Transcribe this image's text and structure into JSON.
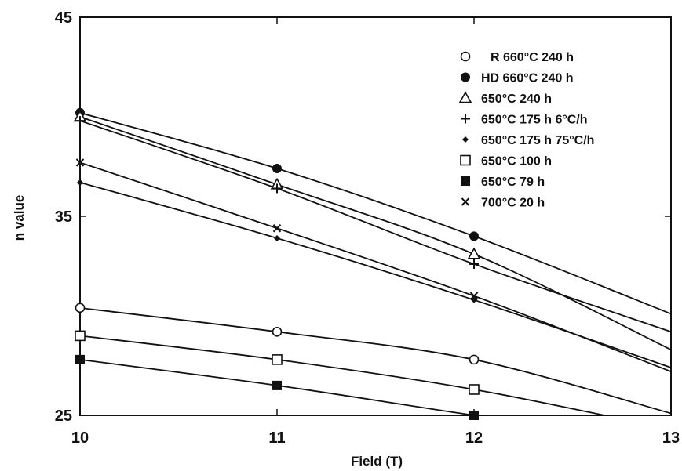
{
  "chart_data": {
    "type": "line",
    "title": "",
    "xlabel": "Field (T)",
    "ylabel": "n value",
    "xlim": [
      10,
      13
    ],
    "ylim": [
      25,
      45
    ],
    "x_ticks": [
      10,
      11,
      12,
      13
    ],
    "x_tick_labels": [
      "10",
      "11",
      "12",
      "13"
    ],
    "y_ticks": [
      25,
      35,
      45
    ],
    "y_tick_labels": [
      "25",
      "35",
      "45"
    ],
    "grid": false,
    "legend_position": "top-right",
    "series": [
      {
        "name": "R 660°C  240 h",
        "marker": "circle-open",
        "x": [
          10,
          11,
          12
        ],
        "y": [
          30.4,
          29.2,
          27.8
        ],
        "line_end": [
          13,
          25.1
        ]
      },
      {
        "name": "HD 660°C 240 h",
        "marker": "circle-filled",
        "x": [
          10,
          11,
          12
        ],
        "y": [
          40.2,
          37.4,
          34.0
        ],
        "line_end": [
          13,
          30.1
        ]
      },
      {
        "name": "650°C 240 h",
        "marker": "triangle-open",
        "x": [
          10,
          11,
          12
        ],
        "y": [
          40.0,
          36.6,
          33.1
        ],
        "line_end": [
          13,
          28.3
        ]
      },
      {
        "name": "650°C 175 h 6°C/h",
        "marker": "plus",
        "x": [
          10,
          11,
          12
        ],
        "y": [
          39.8,
          36.4,
          32.6
        ],
        "line_end": [
          13,
          29.2
        ]
      },
      {
        "name": "650°C 175 h 75°C/h",
        "marker": "diamond-small",
        "x": [
          10,
          11,
          12
        ],
        "y": [
          36.7,
          33.9,
          30.8
        ],
        "line_end": [
          13,
          27.4
        ]
      },
      {
        "name": "650°C 100 h",
        "marker": "square-open",
        "x": [
          10,
          11,
          12
        ],
        "y": [
          29.0,
          27.8,
          26.3
        ],
        "line_end": [
          13,
          24.3
        ]
      },
      {
        "name": "650°C 79 h",
        "marker": "square-filled",
        "x": [
          10,
          11,
          12
        ],
        "y": [
          27.8,
          26.5,
          25.0
        ],
        "line_end": [
          13,
          23.6
        ]
      },
      {
        "name": "700°C 20 h",
        "marker": "x",
        "x": [
          10,
          11,
          12
        ],
        "y": [
          37.7,
          34.4,
          31.0
        ],
        "line_end": [
          13,
          27.2
        ]
      }
    ]
  }
}
